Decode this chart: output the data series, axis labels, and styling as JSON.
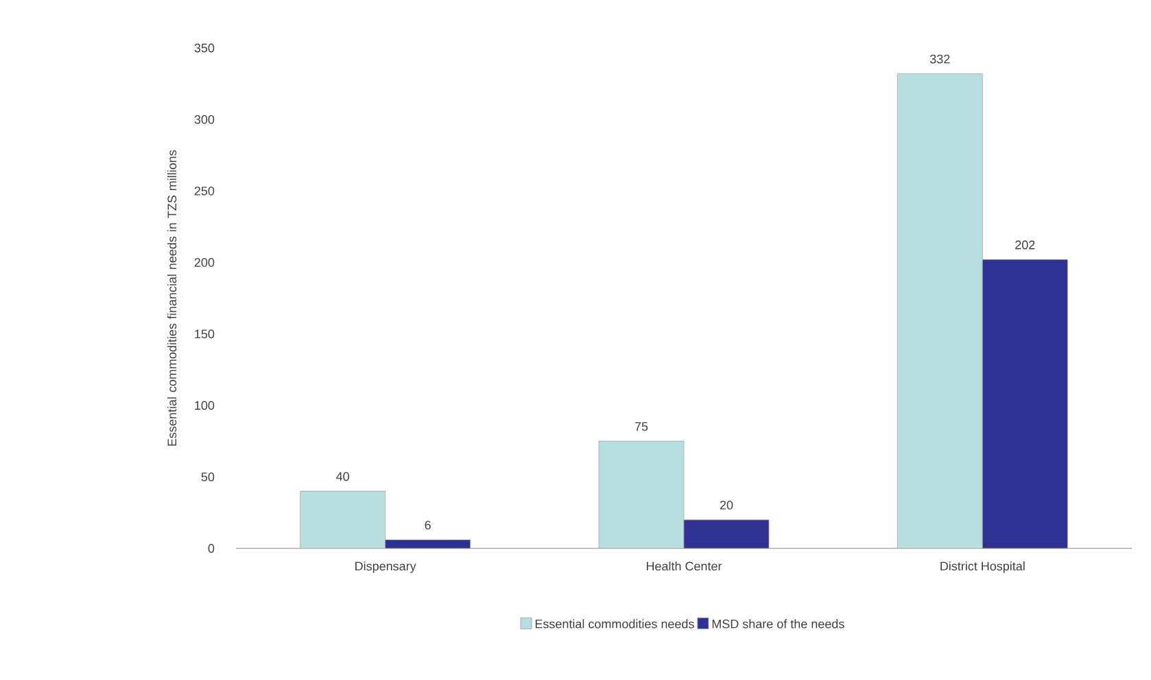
{
  "chart_data": {
    "type": "bar",
    "ylabel": "Essential commodities financial needs in TZS millions",
    "categories": [
      "Dispensary",
      "Health Center",
      "District Hospital"
    ],
    "series": [
      {
        "name": "Essential commodities needs",
        "color": "#b7dfe0",
        "values": [
          40,
          75,
          332
        ]
      },
      {
        "name": "MSD share of the needs",
        "color": "#2e3192",
        "values": [
          6,
          20,
          202
        ]
      }
    ],
    "ylim": [
      0,
      350
    ],
    "yticks": [
      0,
      50,
      100,
      150,
      200,
      250,
      300,
      350
    ],
    "data_labels": true,
    "legend": "bottom"
  }
}
